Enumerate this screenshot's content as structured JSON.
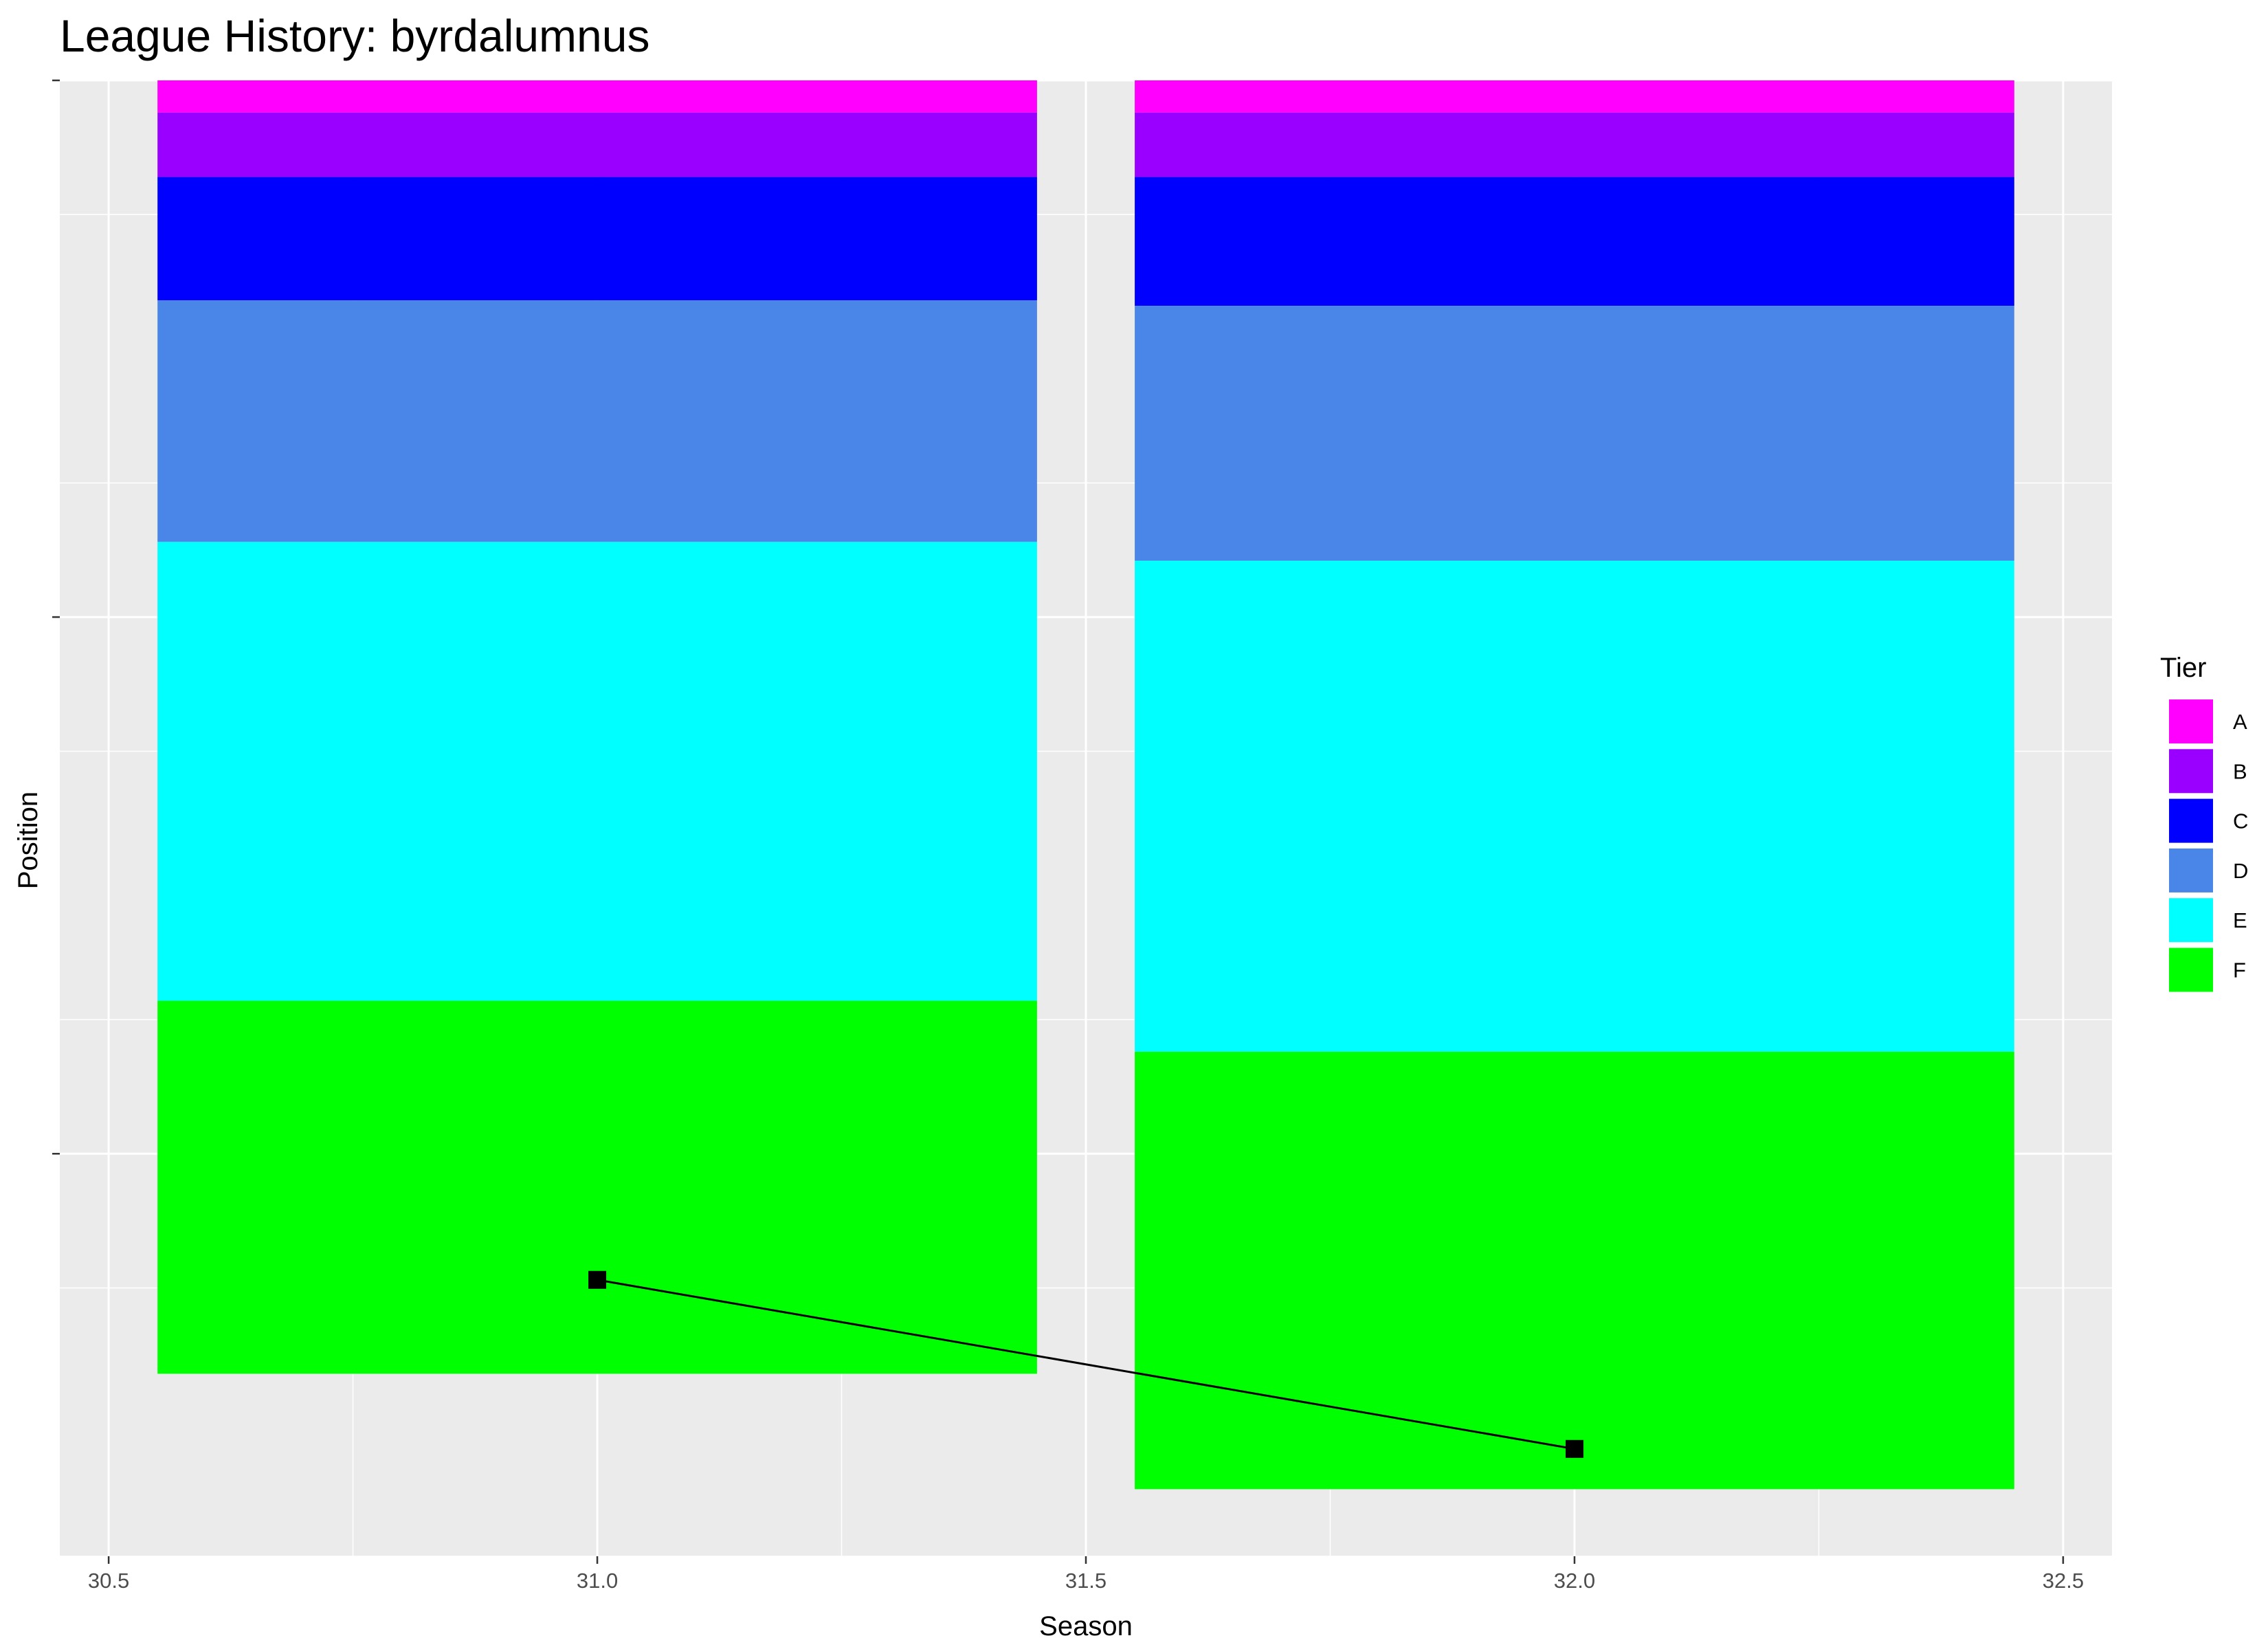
{
  "chart_data": {
    "type": "bar",
    "title": "League History: byrdalumnus",
    "xlabel": "Season",
    "ylabel": "Position",
    "x_ticks": [
      "30.5",
      "31.0",
      "31.5",
      "32.0",
      "32.5"
    ],
    "xlim": [
      30.45,
      32.55
    ],
    "ylim": [
      55,
      0
    ],
    "y_axis_reversed": true,
    "y_tick_labels_shown": false,
    "bar_width": 0.9,
    "grid": true,
    "legend": {
      "title": "Tier",
      "position": "right"
    },
    "tiers": [
      {
        "name": "A",
        "color": "#FF00FF"
      },
      {
        "name": "B",
        "color": "#9A00FF"
      },
      {
        "name": "C",
        "color": "#0000FF"
      },
      {
        "name": "D",
        "color": "#4A86E8"
      },
      {
        "name": "E",
        "color": "#00FFFF"
      },
      {
        "name": "F",
        "color": "#00FF00"
      }
    ],
    "seasons": [
      {
        "season": 31,
        "tier_sizes": [
          1.2,
          2.4,
          4.6,
          9.0,
          17.1,
          13.9
        ]
      },
      {
        "season": 32,
        "tier_sizes": [
          1.2,
          2.4,
          4.8,
          9.5,
          18.3,
          16.3
        ]
      }
    ],
    "series": [
      {
        "type": "line",
        "x": [
          31,
          32
        ],
        "y": [
          44.7,
          51.0
        ],
        "color": "#000000",
        "marker": "square"
      }
    ]
  }
}
